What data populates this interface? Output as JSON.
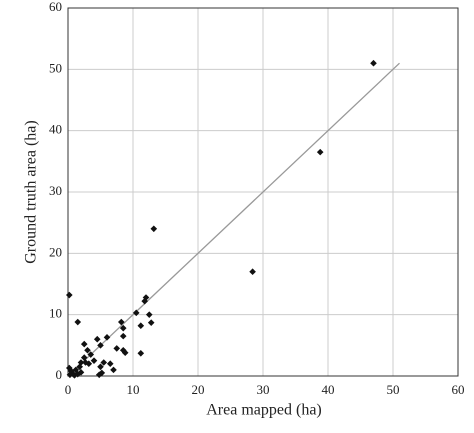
{
  "chart_data": {
    "type": "scatter",
    "x_label": "Area mapped (ha)",
    "y_label": "Ground truth area (ha)",
    "series": [
      {
        "color": "#111111",
        "x": [
          47,
          38.8,
          28.4,
          13.2,
          0.2,
          12,
          11.8,
          12.5,
          10.5,
          12.8,
          8.2,
          8.5,
          8.5,
          11.2,
          1.5,
          6,
          4.5,
          5,
          7.5,
          8.5,
          8.8,
          11.2,
          2.5,
          3,
          3.5,
          2.5,
          4,
          5.5,
          6.5,
          7,
          5,
          5.2,
          4.8,
          3.2,
          2,
          1.8,
          1.2,
          0.5,
          0.8,
          1,
          0.3,
          1.5,
          2,
          2.7,
          0.2
        ],
        "values": [
          51,
          36.5,
          17,
          24,
          13.2,
          12.8,
          12.2,
          10,
          10.3,
          8.7,
          8.8,
          7.8,
          6.5,
          8.2,
          8.8,
          6.3,
          6,
          5,
          4.5,
          4.2,
          3.8,
          3.7,
          5.2,
          4.2,
          3.5,
          3,
          2.5,
          2.2,
          2,
          1,
          1.5,
          0.5,
          0.2,
          2,
          2.2,
          1.5,
          1,
          0.8,
          0.3,
          0.1,
          0.2,
          0.3,
          0.6,
          2.2,
          1.3
        ]
      }
    ],
    "fit_line": {
      "x": [
        0,
        51
      ],
      "values": [
        0,
        51
      ],
      "color": "#999999"
    },
    "xlim": [
      0,
      60
    ],
    "ylim": [
      0,
      60
    ],
    "xticks": [
      0,
      10,
      20,
      30,
      40,
      50,
      60
    ],
    "yticks": [
      0,
      10,
      20,
      30,
      40,
      50,
      60
    ],
    "grid": true
  }
}
